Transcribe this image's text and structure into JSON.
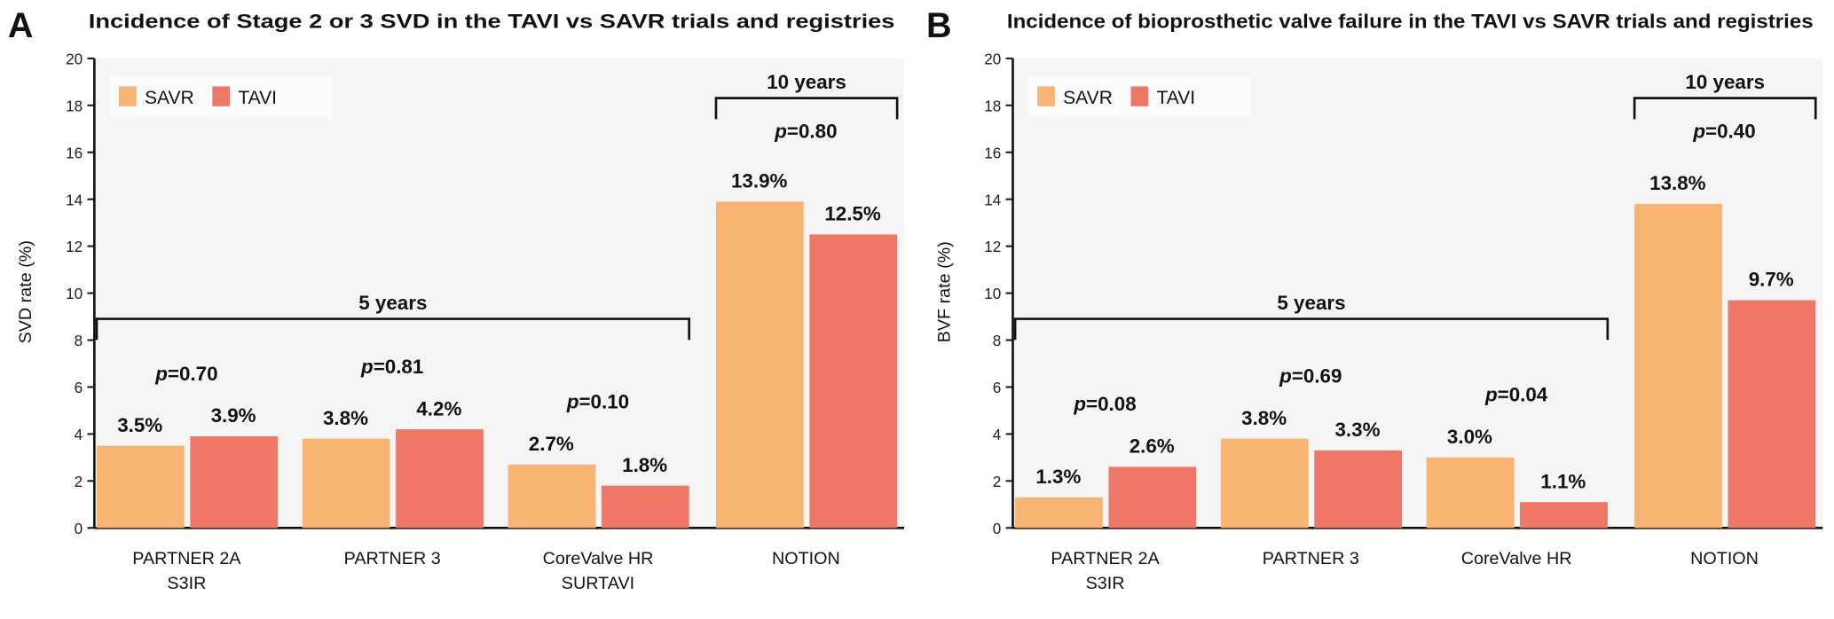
{
  "chart_data": [
    {
      "type": "bar",
      "panel_label": "A",
      "title": "Incidence of Stage 2 or 3 SVD in the TAVI vs SAVR trials and registries",
      "ylabel": "SVD rate (%)",
      "xlabel": "",
      "ylim": [
        0,
        20
      ],
      "yticks": [
        0,
        2,
        4,
        6,
        8,
        10,
        12,
        14,
        16,
        18,
        20
      ],
      "legend_position": "top-left",
      "categories": [
        [
          "PARTNER 2A",
          "S3IR"
        ],
        [
          "PARTNER 3"
        ],
        [
          "CoreValve HR",
          "SURTAVI"
        ],
        [
          "NOTION"
        ]
      ],
      "series": [
        {
          "name": "SAVR",
          "color": "#F7B472",
          "values": [
            3.5,
            3.8,
            2.7,
            13.9
          ],
          "labels": [
            "3.5%",
            "3.8%",
            "2.7%",
            "13.9%"
          ]
        },
        {
          "name": "TAVI",
          "color": "#EE7767",
          "values": [
            3.9,
            4.2,
            1.8,
            12.5
          ],
          "labels": [
            "3.9%",
            "4.2%",
            "1.8%",
            "12.5%"
          ]
        }
      ],
      "p_values": [
        "0.70",
        "0.81",
        "0.10",
        "0.80"
      ],
      "p_prefix": "p",
      "brackets": [
        {
          "label": "5 years",
          "from": 0,
          "to": 2
        },
        {
          "label": "10 years",
          "from": 3,
          "to": 3
        }
      ]
    },
    {
      "type": "bar",
      "panel_label": "B",
      "title": "Incidence of bioprosthetic valve failure in the TAVI vs SAVR trials and registries",
      "ylabel": "BVF rate (%)",
      "xlabel": "",
      "ylim": [
        0,
        20
      ],
      "yticks": [
        0,
        2,
        4,
        6,
        8,
        10,
        12,
        14,
        16,
        18,
        20
      ],
      "legend_position": "top-left",
      "categories": [
        [
          "PARTNER 2A",
          "S3IR"
        ],
        [
          "PARTNER 3"
        ],
        [
          "CoreValve HR"
        ],
        [
          "NOTION"
        ]
      ],
      "series": [
        {
          "name": "SAVR",
          "color": "#F7B472",
          "values": [
            1.3,
            3.8,
            3.0,
            13.8
          ],
          "labels": [
            "1.3%",
            "3.8%",
            "3.0%",
            "13.8%"
          ]
        },
        {
          "name": "TAVI",
          "color": "#EE7767",
          "values": [
            2.6,
            3.3,
            1.1,
            9.7
          ],
          "labels": [
            "2.6%",
            "3.3%",
            "1.1%",
            "9.7%"
          ]
        }
      ],
      "p_values": [
        "0.08",
        "0.69",
        "0.04",
        "0.40"
      ],
      "p_prefix": "p",
      "brackets": [
        {
          "label": "5 years",
          "from": 0,
          "to": 2
        },
        {
          "label": "10 years",
          "from": 3,
          "to": 3
        }
      ]
    }
  ]
}
